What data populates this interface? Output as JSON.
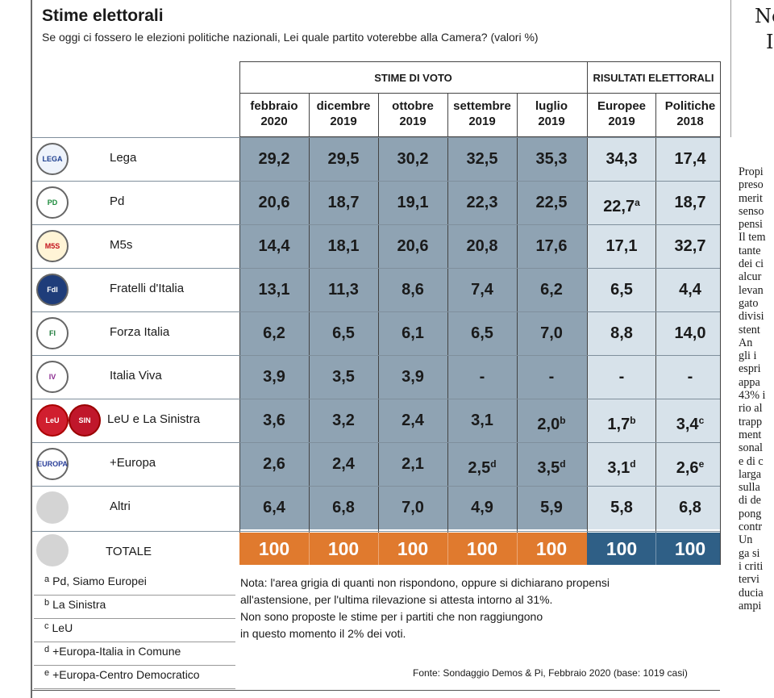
{
  "title": "Stime elettorali",
  "subtitle": "Se oggi ci fossero le elezioni politiche nazionali, Lei quale partito voterebbe alla Camera? (valori %)",
  "groups": {
    "estimates": "STIME DI VOTO",
    "results": "RISULTATI ELETTORALI"
  },
  "columns": [
    {
      "l1": "febbraio",
      "l2": "2020"
    },
    {
      "l1": "dicembre",
      "l2": "2019"
    },
    {
      "l1": "ottobre",
      "l2": "2019"
    },
    {
      "l1": "settembre",
      "l2": "2019"
    },
    {
      "l1": "luglio",
      "l2": "2019"
    },
    {
      "l1": "Europee",
      "l2": "2019"
    },
    {
      "l1": "Politiche",
      "l2": "2018"
    }
  ],
  "rows": [
    {
      "party": "Lega",
      "logo": "lega-logo",
      "values": [
        "29,2",
        "29,5",
        "30,2",
        "32,5",
        "35,3",
        "34,3",
        "17,4"
      ],
      "notes": [
        "",
        "",
        "",
        "",
        "",
        "",
        ""
      ]
    },
    {
      "party": "Pd",
      "logo": "pd-logo",
      "values": [
        "20,6",
        "18,7",
        "19,1",
        "22,3",
        "22,5",
        "22,7",
        "18,7"
      ],
      "notes": [
        "",
        "",
        "",
        "",
        "",
        "a",
        ""
      ]
    },
    {
      "party": "M5s",
      "logo": "m5s-logo",
      "values": [
        "14,4",
        "18,1",
        "20,6",
        "20,8",
        "17,6",
        "17,1",
        "32,7"
      ],
      "notes": [
        "",
        "",
        "",
        "",
        "",
        "",
        ""
      ]
    },
    {
      "party": "Fratelli d'Italia",
      "logo": "fdi-logo",
      "values": [
        "13,1",
        "11,3",
        "8,6",
        "7,4",
        "6,2",
        "6,5",
        "4,4"
      ],
      "notes": [
        "",
        "",
        "",
        "",
        "",
        "",
        ""
      ]
    },
    {
      "party": "Forza Italia",
      "logo": "fi-logo",
      "values": [
        "6,2",
        "6,5",
        "6,1",
        "6,5",
        "7,0",
        "8,8",
        "14,0"
      ],
      "notes": [
        "",
        "",
        "",
        "",
        "",
        "",
        ""
      ]
    },
    {
      "party": "Italia Viva",
      "logo": "iv-logo",
      "values": [
        "3,9",
        "3,5",
        "3,9",
        "-",
        "-",
        "-",
        "-"
      ],
      "notes": [
        "",
        "",
        "",
        "",
        "",
        "",
        ""
      ]
    },
    {
      "party": "LeU e La Sinistra",
      "logo": "leu-logo",
      "values": [
        "3,6",
        "3,2",
        "2,4",
        "3,1",
        "2,0",
        "1,7",
        "3,4"
      ],
      "notes": [
        "",
        "",
        "",
        "",
        "b",
        "b",
        "c"
      ]
    },
    {
      "party": "+Europa",
      "logo": "europa-logo",
      "values": [
        "2,6",
        "2,4",
        "2,1",
        "2,5",
        "3,5",
        "3,1",
        "2,6"
      ],
      "notes": [
        "",
        "",
        "",
        "d",
        "d",
        "d",
        "e"
      ]
    },
    {
      "party": "Altri",
      "logo": "blank-logo",
      "values": [
        "6,4",
        "6,8",
        "7,0",
        "4,9",
        "5,9",
        "5,8",
        "6,8"
      ],
      "notes": [
        "",
        "",
        "",
        "",
        "",
        "",
        ""
      ]
    }
  ],
  "total": {
    "label": "TOTALE",
    "values": [
      "100",
      "100",
      "100",
      "100",
      "100",
      "100",
      "100"
    ]
  },
  "logo_text": {
    "lega": "LEGA",
    "pd": "PD",
    "m5s": "M5S",
    "fdi": "FdI",
    "fi": "FI",
    "iv": "IV",
    "leu1": "LeU",
    "leu2": "SIN",
    "europa": "EUROPA"
  },
  "footnotes": [
    {
      "key": "a",
      "text": "Pd, Siamo Europei"
    },
    {
      "key": "b",
      "text": "La Sinistra"
    },
    {
      "key": "c",
      "text": "LeU"
    },
    {
      "key": "d",
      "text": "+Europa-Italia in Comune"
    },
    {
      "key": "e",
      "text": "+Europa-Centro Democratico"
    }
  ],
  "note_lines": [
    "Nota: l'area grigia di quanti non rispondono, oppure si dichiarano propensi",
    "all'astensione, per l'ultima rilevazione si attesta intorno al 31%.",
    "Non sono proposte le stime per i partiti che non raggiungono",
    "in questo momento il 2% dei voti."
  ],
  "source": "Fonte: Sondaggio Demos & Pi, Febbraio 2020 (base: 1019 casi)",
  "colors": {
    "estimate_shade": "#8fa3b3",
    "result_shade": "#d7e2ea",
    "total_estimate": "#e07a2e",
    "total_result": "#2f5f86"
  },
  "sidebar": {
    "heading": [
      "Ne",
      "I"
    ],
    "lines": [
      "Propi",
      "preso",
      "merit",
      "senso",
      "pensi",
      "Il tem",
      "tante",
      "dei ci",
      "alcur",
      "levan",
      "gato",
      "divisi",
      "stent",
      "An",
      "gli i",
      "espri",
      "appa",
      "43% i",
      "rio al",
      "trapp",
      "ment",
      "sonal",
      "e di c",
      "larga",
      "sulla",
      "di de",
      "pong",
      "contr",
      "Un",
      "ga si",
      "i criti",
      "tervi",
      "ducia",
      "ampi"
    ]
  }
}
